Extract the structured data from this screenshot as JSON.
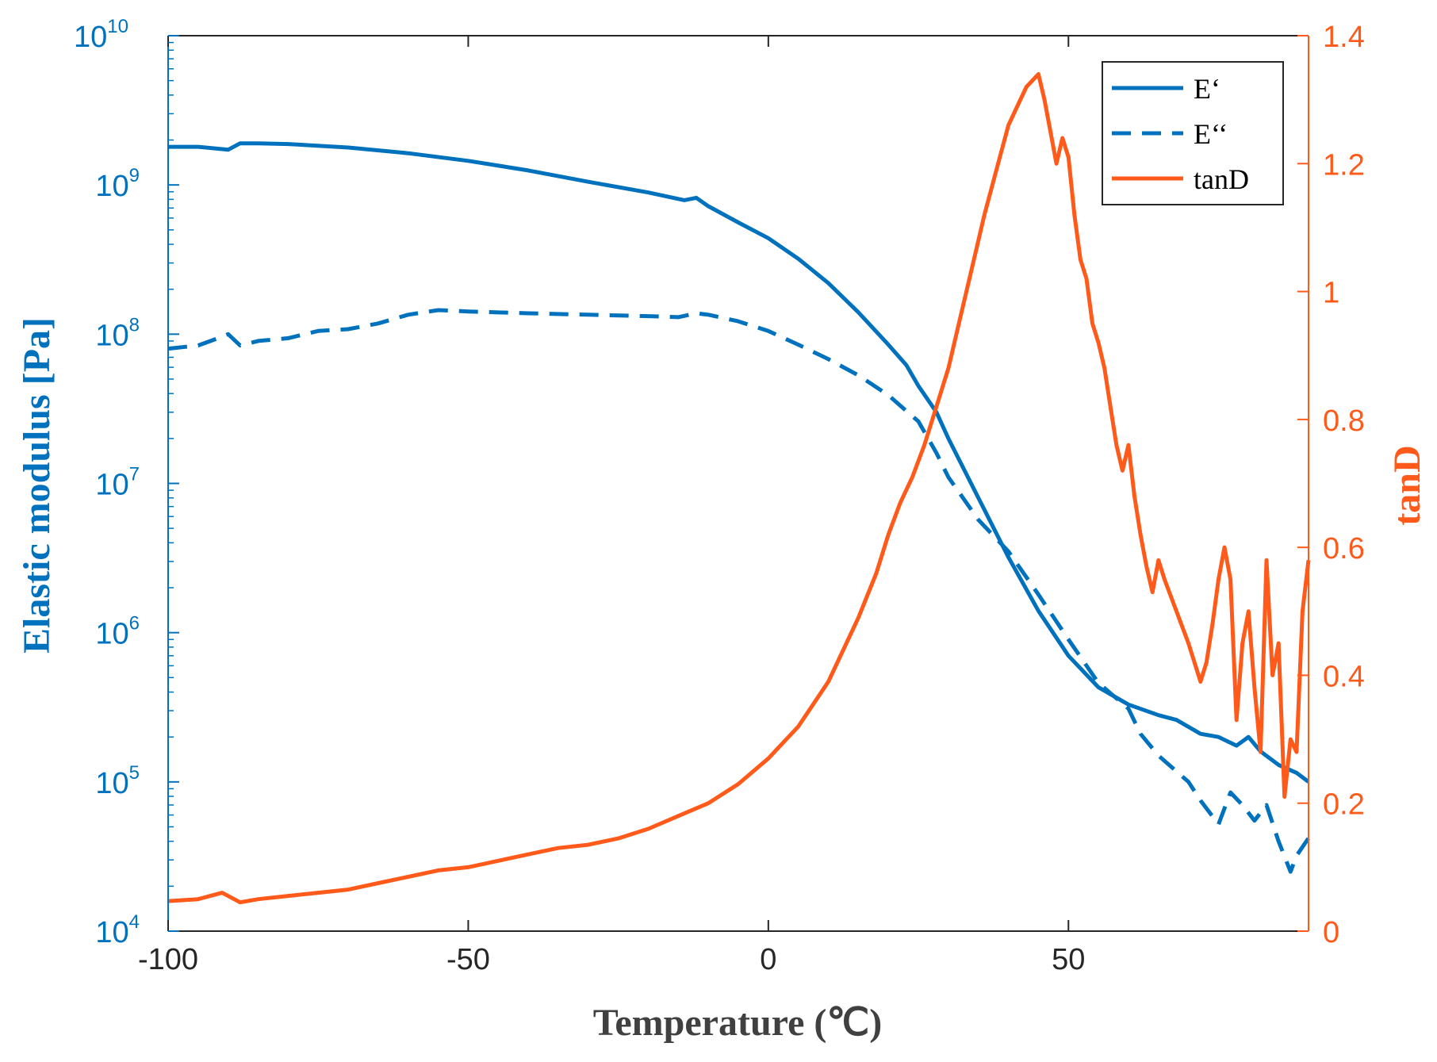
{
  "chart_data": {
    "type": "line",
    "xlabel": "Temperature (℃)",
    "ylabel": "Elastic modulus [Pa]",
    "y2label": "tanD",
    "xlim": [
      -100,
      90
    ],
    "ylim": [
      10000,
      10000000000
    ],
    "yscale": "log",
    "y2lim": [
      0,
      1.4
    ],
    "x_ticks": [
      "-100",
      "-50",
      "0",
      "50"
    ],
    "y_ticks": [
      {
        "base": "10",
        "exp": "4"
      },
      {
        "base": "10",
        "exp": "5"
      },
      {
        "base": "10",
        "exp": "6"
      },
      {
        "base": "10",
        "exp": "7"
      },
      {
        "base": "10",
        "exp": "8"
      },
      {
        "base": "10",
        "exp": "9"
      },
      {
        "base": "10",
        "exp": "10"
      }
    ],
    "y2_ticks": [
      "0",
      "0.2",
      "0.4",
      "0.6",
      "0.8",
      "1",
      "1.2",
      "1.4"
    ],
    "legend_position": "top-right",
    "grid": false,
    "colors": {
      "modulus": "#0072BD",
      "tanD": "#FF5A1A",
      "axis": "#262626"
    },
    "series": [
      {
        "name": "E‘",
        "axis": "left",
        "style": "solid",
        "x": [
          -100,
          -95,
          -90,
          -88,
          -85,
          -80,
          -70,
          -60,
          -50,
          -40,
          -30,
          -20,
          -14,
          -12,
          -10,
          -5,
          0,
          5,
          10,
          15,
          20,
          23,
          25,
          28,
          30,
          35,
          40,
          45,
          50,
          55,
          60,
          65,
          68,
          72,
          75,
          78,
          80,
          82,
          85,
          88,
          90
        ],
        "y": [
          1800000000.0,
          1800000000.0,
          1720000000.0,
          1900000000.0,
          1900000000.0,
          1880000000.0,
          1780000000.0,
          1630000000.0,
          1450000000.0,
          1250000000.0,
          1050000000.0,
          890000000.0,
          790000000.0,
          820000000.0,
          720000000.0,
          560000000.0,
          440000000.0,
          320000000.0,
          220000000.0,
          140000000.0,
          85000000.0,
          62000000.0,
          45000000.0,
          30000000.0,
          20000000.0,
          8000000.0,
          3200000.0,
          1400000.0,
          700000.0,
          430000.0,
          330000.0,
          280000.0,
          260000.0,
          210000.0,
          200000.0,
          175000.0,
          200000.0,
          160000.0,
          130000.0,
          115000.0,
          100000.0
        ]
      },
      {
        "name": "E‘‘",
        "axis": "left",
        "style": "dashed",
        "x": [
          -100,
          -95,
          -92,
          -90,
          -88,
          -85,
          -80,
          -75,
          -70,
          -65,
          -60,
          -55,
          -50,
          -40,
          -30,
          -20,
          -15,
          -12,
          -10,
          -5,
          0,
          5,
          10,
          15,
          20,
          25,
          28,
          30,
          35,
          40,
          45,
          50,
          55,
          60,
          62,
          65,
          70,
          72,
          75,
          77,
          79,
          81,
          83,
          85,
          87,
          88,
          90
        ],
        "y": [
          80000000.0,
          84000000.0,
          93000000.0,
          100000000.0,
          84000000.0,
          90000000.0,
          94000000.0,
          105000000.0,
          108000000.0,
          118000000.0,
          135000000.0,
          145000000.0,
          142000000.0,
          138000000.0,
          135000000.0,
          132000000.0,
          130000000.0,
          138000000.0,
          135000000.0,
          122000000.0,
          105000000.0,
          85000000.0,
          68000000.0,
          53000000.0,
          39000000.0,
          26000000.0,
          16000000.0,
          11000000.0,
          5700000.0,
          3500000.0,
          1800000.0,
          900000.0,
          460000.0,
          310000.0,
          210000.0,
          150000.0,
          100000.0,
          75000.0,
          52000.0,
          85000.0,
          70000.0,
          55000.0,
          70000.0,
          40000.0,
          25000.0,
          32000.0,
          42000.0
        ]
      },
      {
        "name": "tanD",
        "axis": "right",
        "style": "solid",
        "x": [
          -100,
          -95,
          -91,
          -89,
          -88,
          -85,
          -80,
          -75,
          -70,
          -65,
          -60,
          -55,
          -50,
          -45,
          -40,
          -35,
          -30,
          -25,
          -20,
          -15,
          -10,
          -5,
          0,
          5,
          10,
          15,
          18,
          20,
          22,
          24,
          26,
          28,
          30,
          32,
          34,
          36,
          38,
          40,
          42,
          43,
          44,
          45,
          46,
          47,
          48,
          49,
          50,
          51,
          52,
          53,
          54,
          55,
          56,
          57,
          58,
          59,
          60,
          61,
          62,
          63,
          64,
          65,
          66,
          68,
          70,
          71,
          72,
          73,
          74,
          75,
          76,
          77,
          78,
          79,
          80,
          81,
          82,
          83,
          84,
          85,
          86,
          87,
          88,
          89,
          90
        ],
        "y": [
          0.047,
          0.05,
          0.06,
          0.05,
          0.045,
          0.05,
          0.055,
          0.06,
          0.065,
          0.075,
          0.085,
          0.095,
          0.1,
          0.11,
          0.12,
          0.13,
          0.135,
          0.145,
          0.16,
          0.18,
          0.2,
          0.23,
          0.27,
          0.32,
          0.39,
          0.49,
          0.56,
          0.62,
          0.67,
          0.71,
          0.76,
          0.82,
          0.88,
          0.96,
          1.04,
          1.12,
          1.19,
          1.26,
          1.3,
          1.32,
          1.33,
          1.34,
          1.3,
          1.25,
          1.2,
          1.24,
          1.21,
          1.12,
          1.05,
          1.02,
          0.95,
          0.92,
          0.88,
          0.82,
          0.76,
          0.72,
          0.76,
          0.68,
          0.62,
          0.57,
          0.53,
          0.58,
          0.55,
          0.5,
          0.45,
          0.42,
          0.39,
          0.42,
          0.48,
          0.55,
          0.6,
          0.55,
          0.33,
          0.45,
          0.5,
          0.38,
          0.28,
          0.58,
          0.4,
          0.45,
          0.21,
          0.3,
          0.28,
          0.5,
          0.58
        ]
      }
    ]
  }
}
